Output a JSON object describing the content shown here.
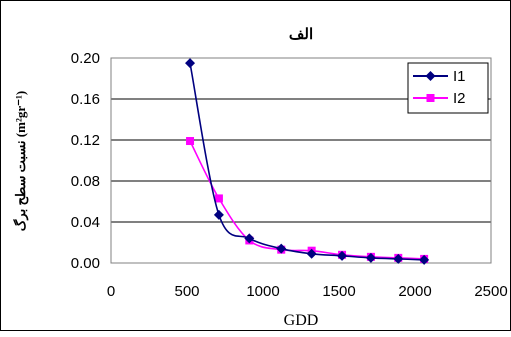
{
  "chart_data": {
    "type": "line",
    "title": "الف",
    "xlabel": "GDD",
    "ylabel": "(m²gr⁻¹) نسبت سطح برگ",
    "x_ticks": [
      "0",
      "500",
      "1000",
      "1500",
      "2000",
      "2500"
    ],
    "y_ticks": [
      "0.00",
      "0.04",
      "0.08",
      "0.12",
      "0.16",
      "0.20"
    ],
    "xlim": [
      0,
      2500
    ],
    "ylim": [
      0,
      0.2
    ],
    "grid": "horizontal",
    "legend_position": "top-right",
    "series": [
      {
        "name": "I1",
        "color": "#000080",
        "marker": "diamond",
        "x": [
          520,
          710,
          910,
          1120,
          1320,
          1520,
          1710,
          1890,
          2060
        ],
        "y": [
          0.195,
          0.047,
          0.024,
          0.014,
          0.009,
          0.007,
          0.005,
          0.004,
          0.003
        ]
      },
      {
        "name": "I2",
        "color": "#ff00ff",
        "marker": "square",
        "x": [
          520,
          710,
          910,
          1120,
          1320,
          1520,
          1710,
          1890,
          2060
        ],
        "y": [
          0.119,
          0.063,
          0.022,
          0.013,
          0.012,
          0.008,
          0.006,
          0.005,
          0.004
        ]
      }
    ]
  }
}
